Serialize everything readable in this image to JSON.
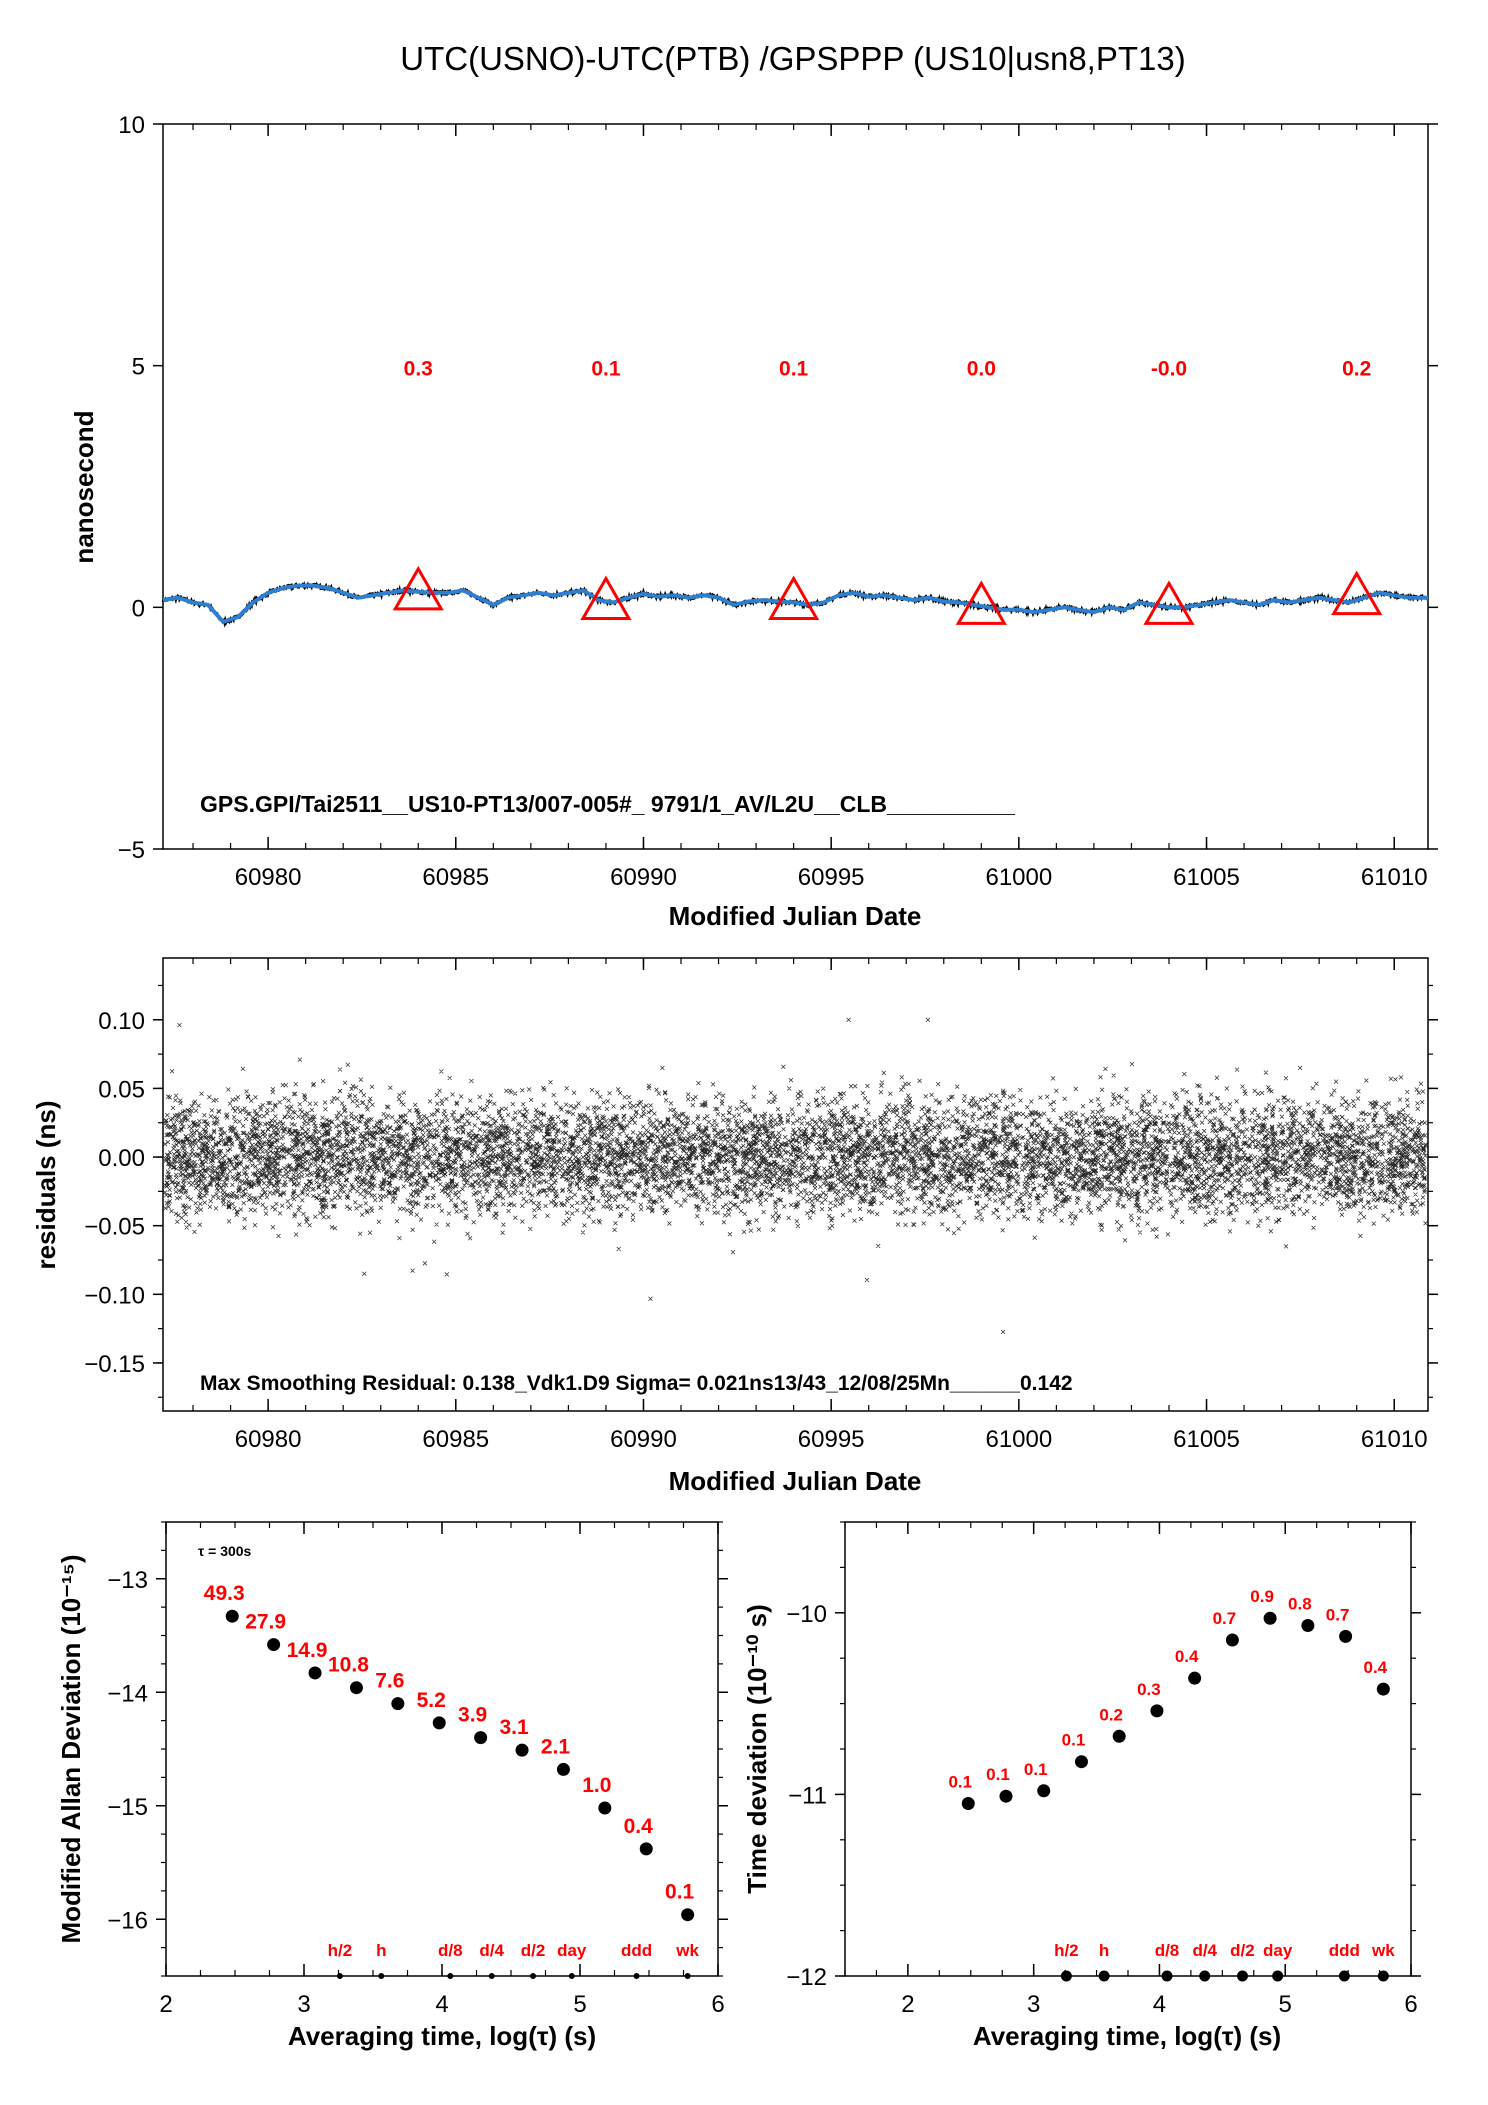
{
  "chart_data": [
    {
      "id": "series",
      "type": "line",
      "title": "UTC(USNO)-UTC(PTB)  /GPSPPP  (US10|usn8,PT13)",
      "xlabel": "Modified Julian Date",
      "ylabel": "nanosecond",
      "xlim": [
        60977.2,
        61010.9
      ],
      "ylim": [
        -5,
        10
      ],
      "xticks": [
        60980,
        60985,
        60990,
        60995,
        61000,
        61005,
        61010
      ],
      "yticks": [
        -5,
        0,
        5,
        10
      ],
      "line_color": "#2f7fd0",
      "marker_color": "#ff0000",
      "x": [
        60977.2,
        60977.6,
        60978.0,
        60978.4,
        60978.8,
        60979.2,
        60979.6,
        60980.0,
        60980.4,
        60980.8,
        60981.2,
        60981.6,
        60982.0,
        60982.4,
        60982.8,
        60983.2,
        60983.6,
        60984.0,
        60984.4,
        60984.8,
        60985.2,
        60985.6,
        60986.0,
        60986.4,
        60986.8,
        60987.2,
        60987.6,
        60988.0,
        60988.4,
        60988.8,
        60989.2,
        60989.6,
        60990.0,
        60990.4,
        60990.8,
        60991.2,
        60991.6,
        60992.0,
        60992.4,
        60992.8,
        60993.2,
        60993.6,
        60994.0,
        60994.4,
        60994.8,
        60995.2,
        60995.6,
        60996.0,
        60996.4,
        60996.8,
        60997.2,
        60997.6,
        60998.0,
        60998.4,
        60998.8,
        60999.2,
        60999.6,
        61000.0,
        61000.4,
        61000.8,
        61001.2,
        61001.6,
        61002.0,
        61002.4,
        61002.8,
        61003.2,
        61003.6,
        61004.0,
        61004.4,
        61004.8,
        61005.2,
        61005.6,
        61006.0,
        61006.4,
        61006.8,
        61007.2,
        61007.6,
        61008.0,
        61008.4,
        61008.8,
        61009.2,
        61009.6,
        61010.0,
        61010.4,
        61010.9
      ],
      "y": [
        0.15,
        0.2,
        0.1,
        0.05,
        -0.3,
        -0.2,
        0.1,
        0.3,
        0.4,
        0.45,
        0.45,
        0.4,
        0.3,
        0.2,
        0.25,
        0.3,
        0.35,
        0.32,
        0.3,
        0.3,
        0.35,
        0.2,
        0.05,
        0.2,
        0.25,
        0.3,
        0.25,
        0.3,
        0.35,
        0.15,
        0.1,
        0.2,
        0.28,
        0.22,
        0.25,
        0.2,
        0.25,
        0.2,
        0.05,
        0.12,
        0.15,
        0.12,
        0.1,
        0.05,
        0.1,
        0.25,
        0.3,
        0.22,
        0.25,
        0.2,
        0.15,
        0.2,
        0.12,
        0.1,
        0.05,
        0.0,
        -0.05,
        -0.05,
        -0.1,
        -0.05,
        0.0,
        -0.05,
        -0.1,
        0.0,
        -0.05,
        0.1,
        0.05,
        0.0,
        0.0,
        0.05,
        0.1,
        0.15,
        0.1,
        0.05,
        0.15,
        0.1,
        0.15,
        0.2,
        0.15,
        0.1,
        0.2,
        0.3,
        0.25,
        0.2,
        0.2
      ],
      "markers": [
        {
          "x": 60984.0,
          "y": 0.3,
          "label": "0.3"
        },
        {
          "x": 60989.0,
          "y": 0.1,
          "label": "0.1"
        },
        {
          "x": 60994.0,
          "y": 0.1,
          "label": "0.1"
        },
        {
          "x": 60999.0,
          "y": 0.0,
          "label": "0.0"
        },
        {
          "x": 61004.0,
          "y": -0.0,
          "label": "-0.0"
        },
        {
          "x": 61009.0,
          "y": 0.2,
          "label": "0.2"
        }
      ],
      "marker_label_y": 5.0,
      "annotation": "GPS.GPI/Tai2511__US10-PT13/007-005#_  9791/1_AV/L2U__CLB__________"
    },
    {
      "id": "residuals",
      "type": "scatter",
      "xlabel": "Modified Julian Date",
      "ylabel": "residuals (ns)",
      "xlim": [
        60977.2,
        61010.9
      ],
      "ylim": [
        -0.185,
        0.145
      ],
      "xticks": [
        60980,
        60985,
        60990,
        60995,
        61000,
        61005,
        61010
      ],
      "yticks": [
        -0.15,
        -0.1,
        -0.05,
        0.0,
        0.05,
        0.1
      ],
      "ytick_labels": [
        "−0.15",
        "−0.10",
        "−0.05",
        "0.00",
        "0.05",
        "0.10"
      ],
      "sigma": 0.021,
      "annotation": "Max Smoothing Residual: 0.138_Vdk1.D9  Sigma= 0.021ns13/43_12/08/25Mn______0.142"
    },
    {
      "id": "mdev",
      "type": "scatter",
      "xlabel": "Averaging time, log(τ) (s)",
      "ylabel": "Modified Allan Deviation (10⁻¹⁵)",
      "xlim": [
        2,
        6
      ],
      "ylim": [
        -16.5,
        -12.5
      ],
      "xticks": [
        2,
        3,
        4,
        5,
        6
      ],
      "yticks": [
        -16,
        -15,
        -14,
        -13
      ],
      "ytick_labels": [
        "−16",
        "−15",
        "−14",
        "−13"
      ],
      "tau_note": "τ = 300s",
      "points": [
        {
          "x": 2.48,
          "y": -13.33,
          "label": "49.3"
        },
        {
          "x": 2.78,
          "y": -13.58,
          "label": "27.9"
        },
        {
          "x": 3.08,
          "y": -13.83,
          "label": "14.9"
        },
        {
          "x": 3.38,
          "y": -13.96,
          "label": "10.8"
        },
        {
          "x": 3.68,
          "y": -14.1,
          "label": "7.6"
        },
        {
          "x": 3.98,
          "y": -14.27,
          "label": "5.2"
        },
        {
          "x": 4.28,
          "y": -14.4,
          "label": "3.9"
        },
        {
          "x": 4.58,
          "y": -14.51,
          "label": "3.1"
        },
        {
          "x": 4.88,
          "y": -14.68,
          "label": "2.1"
        },
        {
          "x": 5.18,
          "y": -15.02,
          "label": "1.0"
        },
        {
          "x": 5.48,
          "y": -15.38,
          "label": "0.4"
        },
        {
          "x": 5.78,
          "y": -15.96,
          "label": "0.1"
        }
      ],
      "period_marks": [
        {
          "x": 3.26,
          "label": "h/2"
        },
        {
          "x": 3.56,
          "label": "h"
        },
        {
          "x": 4.06,
          "label": "d/8"
        },
        {
          "x": 4.36,
          "label": "d/4"
        },
        {
          "x": 4.66,
          "label": "d/2"
        },
        {
          "x": 4.94,
          "label": "day"
        },
        {
          "x": 5.41,
          "label": "ddd"
        },
        {
          "x": 5.78,
          "label": "wk"
        }
      ]
    },
    {
      "id": "tdev",
      "type": "scatter",
      "xlabel": "Averaging time, log(τ) (s)",
      "ylabel": "Time deviation (10⁻¹⁰ s)",
      "xlim": [
        1.5,
        6.0
      ],
      "ylim": [
        -12.0,
        -9.5
      ],
      "xticks": [
        2,
        3,
        4,
        5,
        6
      ],
      "yticks": [
        -12,
        -11,
        -10
      ],
      "ytick_labels": [
        "−12",
        "−11",
        "−10"
      ],
      "points": [
        {
          "x": 2.48,
          "y": -11.05,
          "label": "0.1"
        },
        {
          "x": 2.78,
          "y": -11.01,
          "label": "0.1"
        },
        {
          "x": 3.08,
          "y": -10.98,
          "label": "0.1"
        },
        {
          "x": 3.38,
          "y": -10.82,
          "label": "0.1"
        },
        {
          "x": 3.68,
          "y": -10.68,
          "label": "0.2"
        },
        {
          "x": 3.98,
          "y": -10.54,
          "label": "0.3"
        },
        {
          "x": 4.28,
          "y": -10.36,
          "label": "0.4"
        },
        {
          "x": 4.58,
          "y": -10.15,
          "label": "0.7"
        },
        {
          "x": 4.88,
          "y": -10.03,
          "label": "0.9"
        },
        {
          "x": 5.18,
          "y": -10.07,
          "label": "0.8"
        },
        {
          "x": 5.48,
          "y": -10.13,
          "label": "0.7"
        },
        {
          "x": 5.78,
          "y": -10.42,
          "label": "0.4"
        }
      ],
      "period_marks": [
        {
          "x": 3.26,
          "label": "h/2"
        },
        {
          "x": 3.56,
          "label": "h"
        },
        {
          "x": 4.06,
          "label": "d/8"
        },
        {
          "x": 4.36,
          "label": "d/4"
        },
        {
          "x": 4.66,
          "label": "d/2"
        },
        {
          "x": 4.94,
          "label": "day"
        },
        {
          "x": 5.47,
          "label": "ddd"
        },
        {
          "x": 5.78,
          "label": "wk"
        }
      ]
    }
  ]
}
